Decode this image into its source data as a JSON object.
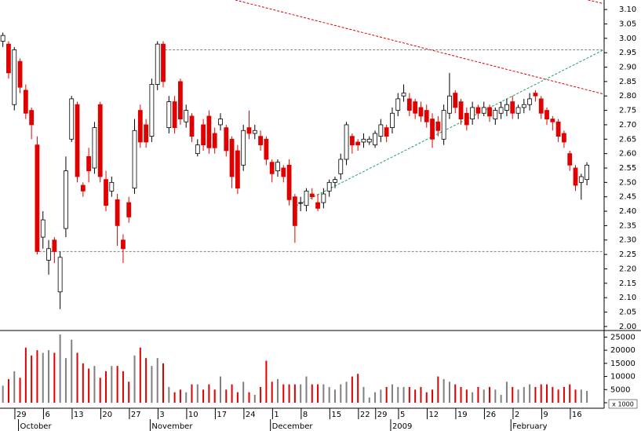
{
  "chart_data": [
    {
      "type": "candlestick",
      "open": [
        2.99,
        2.98,
        2.77,
        2.92,
        2.82,
        2.75,
        2.63,
        2.31,
        2.23,
        2.3,
        2.12,
        2.34,
        2.65,
        2.77,
        2.49,
        2.59,
        2.55,
        2.77,
        2.51,
        2.47,
        2.44,
        2.3,
        2.43,
        2.48,
        2.75,
        2.7,
        2.66,
        2.84,
        2.98,
        2.69,
        2.78,
        2.85,
        2.71,
        2.73,
        2.6,
        2.7,
        2.73,
        2.67,
        2.7,
        2.69,
        2.65,
        2.61,
        2.56,
        2.69,
        2.67,
        2.66,
        2.65,
        2.57,
        2.54,
        2.55,
        2.56,
        2.45,
        2.43,
        2.42,
        2.46,
        2.43,
        2.43,
        2.47,
        2.5,
        2.53,
        2.58,
        2.66,
        2.64,
        2.64,
        2.64,
        2.63,
        2.66,
        2.69,
        2.69,
        2.75,
        2.8,
        2.79,
        2.78,
        2.76,
        2.75,
        2.72,
        2.71,
        2.65,
        2.74,
        2.81,
        2.78,
        2.74,
        2.72,
        2.76,
        2.74,
        2.76,
        2.72,
        2.74,
        2.75,
        2.78,
        2.74,
        2.76,
        2.77,
        2.81,
        2.79,
        2.75,
        2.72,
        2.71,
        2.67,
        2.6,
        2.55,
        2.5,
        2.51
      ],
      "high": [
        3.02,
        2.99,
        2.97,
        2.93,
        2.84,
        2.76,
        2.66,
        2.4,
        2.3,
        2.31,
        2.26,
        2.59,
        2.8,
        2.78,
        2.5,
        2.62,
        2.71,
        2.78,
        2.54,
        2.52,
        2.46,
        2.32,
        2.45,
        2.72,
        2.77,
        2.72,
        2.86,
        2.99,
        2.99,
        2.8,
        2.8,
        2.86,
        2.77,
        2.74,
        2.65,
        2.72,
        2.75,
        2.69,
        2.74,
        2.7,
        2.66,
        2.63,
        2.7,
        2.75,
        2.7,
        2.68,
        2.66,
        2.58,
        2.58,
        2.56,
        2.58,
        2.46,
        2.45,
        2.48,
        2.48,
        2.46,
        2.48,
        2.51,
        2.52,
        2.6,
        2.71,
        2.67,
        2.65,
        2.67,
        2.66,
        2.68,
        2.72,
        2.7,
        2.76,
        2.81,
        2.84,
        2.81,
        2.79,
        2.78,
        2.77,
        2.74,
        2.73,
        2.77,
        2.88,
        2.82,
        2.79,
        2.76,
        2.78,
        2.77,
        2.78,
        2.77,
        2.76,
        2.78,
        2.79,
        2.8,
        2.77,
        2.79,
        2.81,
        2.82,
        2.8,
        2.76,
        2.73,
        2.72,
        2.68,
        2.61,
        2.56,
        2.53,
        2.57
      ],
      "low": [
        2.97,
        2.86,
        2.75,
        2.81,
        2.72,
        2.65,
        2.25,
        2.27,
        2.18,
        2.22,
        2.06,
        2.31,
        2.64,
        2.5,
        2.45,
        2.5,
        2.53,
        2.5,
        2.4,
        2.45,
        2.28,
        2.22,
        2.36,
        2.46,
        2.62,
        2.62,
        2.64,
        2.82,
        2.83,
        2.67,
        2.67,
        2.7,
        2.69,
        2.64,
        2.59,
        2.61,
        2.6,
        2.6,
        2.68,
        2.59,
        2.48,
        2.46,
        2.54,
        2.65,
        2.65,
        2.61,
        2.56,
        2.5,
        2.52,
        2.5,
        2.42,
        2.29,
        2.4,
        2.4,
        2.44,
        2.4,
        2.41,
        2.45,
        2.48,
        2.51,
        2.56,
        2.6,
        2.61,
        2.62,
        2.63,
        2.62,
        2.64,
        2.64,
        2.67,
        2.73,
        2.78,
        2.73,
        2.72,
        2.71,
        2.69,
        2.62,
        2.66,
        2.63,
        2.72,
        2.74,
        2.7,
        2.68,
        2.7,
        2.72,
        2.73,
        2.71,
        2.7,
        2.72,
        2.73,
        2.72,
        2.72,
        2.74,
        2.75,
        2.78,
        2.72,
        2.7,
        2.68,
        2.64,
        2.62,
        2.54,
        2.47,
        2.44,
        2.49
      ],
      "close": [
        3.01,
        2.88,
        2.96,
        2.83,
        2.74,
        2.7,
        2.26,
        2.37,
        2.27,
        2.26,
        2.24,
        2.54,
        2.79,
        2.52,
        2.47,
        2.54,
        2.69,
        2.52,
        2.42,
        2.5,
        2.35,
        2.27,
        2.38,
        2.68,
        2.64,
        2.64,
        2.84,
        2.98,
        2.85,
        2.78,
        2.69,
        2.72,
        2.75,
        2.66,
        2.63,
        2.63,
        2.62,
        2.62,
        2.72,
        2.61,
        2.52,
        2.48,
        2.68,
        2.67,
        2.68,
        2.63,
        2.58,
        2.53,
        2.57,
        2.52,
        2.44,
        2.35,
        2.43,
        2.47,
        2.45,
        2.41,
        2.46,
        2.5,
        2.51,
        2.58,
        2.7,
        2.63,
        2.63,
        2.65,
        2.65,
        2.67,
        2.7,
        2.66,
        2.74,
        2.79,
        2.81,
        2.75,
        2.74,
        2.73,
        2.71,
        2.65,
        2.68,
        2.75,
        2.8,
        2.76,
        2.72,
        2.7,
        2.76,
        2.74,
        2.76,
        2.73,
        2.75,
        2.76,
        2.77,
        2.74,
        2.76,
        2.77,
        2.79,
        2.8,
        2.74,
        2.72,
        2.71,
        2.66,
        2.64,
        2.56,
        2.49,
        2.52,
        2.56
      ],
      "up_color": "#ffffff",
      "down_color": "#e00000",
      "xlim": [
        -0.5,
        105
      ],
      "ylim": [
        1.986,
        3.133
      ],
      "yticks": [
        {
          "value": 2.0,
          "label": "2.00"
        },
        2.05,
        {
          "value": 2.1,
          "label": "2.10"
        },
        2.15,
        {
          "value": 2.2,
          "label": "2.20"
        },
        2.25,
        {
          "value": 2.3,
          "label": "2.30"
        },
        2.35,
        {
          "value": 2.4,
          "label": "2.40"
        },
        2.45,
        {
          "value": 2.5,
          "label": "2.50"
        },
        2.55,
        {
          "value": 2.6,
          "label": "2.60"
        },
        2.65,
        {
          "value": 2.7,
          "label": "2.70"
        },
        2.75,
        {
          "value": 2.8,
          "label": "2.80"
        },
        2.85,
        {
          "value": 2.9,
          "label": "2.90"
        },
        2.95,
        {
          "value": 3.0,
          "label": "3.00"
        },
        3.05,
        {
          "value": 3.1,
          "label": "3.10"
        }
      ],
      "xticks": [
        {
          "value": 1,
          "label": "29"
        },
        {
          "value": 6,
          "label": "6"
        },
        {
          "value": 11,
          "label": "13"
        },
        {
          "value": 16,
          "label": "20"
        },
        {
          "value": 21,
          "label": "27"
        },
        {
          "value": 26,
          "label": "3"
        },
        {
          "value": 31,
          "label": "10"
        },
        {
          "value": 36,
          "label": "17"
        },
        {
          "value": 41,
          "label": "24"
        },
        {
          "value": 46,
          "label": "1"
        },
        {
          "value": 51,
          "label": "8"
        },
        {
          "value": 56,
          "label": "15"
        },
        {
          "value": 61,
          "label": "22"
        },
        {
          "value": 64,
          "label": "29"
        },
        {
          "value": 68,
          "label": "5"
        },
        {
          "value": 73,
          "label": "12"
        },
        {
          "value": 78,
          "label": "19"
        },
        {
          "value": 83,
          "label": "26"
        },
        {
          "value": 88,
          "label": "2"
        },
        {
          "value": 93,
          "label": "9"
        },
        {
          "value": 98,
          "label": "16"
        }
      ],
      "month_ticks": [
        {
          "value": 3,
          "label": "October"
        },
        {
          "value": 26,
          "label": "November"
        },
        {
          "value": 47,
          "label": "December"
        },
        {
          "value": 68,
          "label": "2009"
        },
        {
          "value": 89,
          "label": "February"
        }
      ],
      "trendlines": [
        {
          "color": "#e00000",
          "x": [
            40.6,
            105
          ],
          "y": [
            3.133,
            2.806
          ]
        },
        {
          "color": "#e00000",
          "x": [
            102.2,
            105
          ],
          "y": [
            3.133,
            3.12
          ]
        },
        {
          "color": "#20a060",
          "x": [
            51.2,
            105
          ],
          "y": [
            2.419,
            2.961
          ]
        },
        {
          "color": "#808080",
          "x": [
            6.3,
            105
          ],
          "y": [
            2.26,
            2.26
          ]
        },
        {
          "color": "#808080",
          "x": [
            28.3,
            105
          ],
          "y": [
            2.96,
            2.96
          ]
        }
      ]
    },
    {
      "type": "bar",
      "values": [
        6500,
        9000,
        12000,
        9500,
        21000,
        18000,
        20000,
        19000,
        20000,
        19000,
        26000,
        17000,
        24000,
        19000,
        15000,
        13000,
        14000,
        9500,
        12000,
        14000,
        14000,
        12000,
        8000,
        18000,
        21000,
        17000,
        14000,
        17000,
        15000,
        6000,
        4000,
        5000,
        4000,
        7000,
        7000,
        5000,
        7000,
        5000,
        10000,
        5000,
        7000,
        4000,
        8000,
        4000,
        3000,
        6000,
        16000,
        8000,
        9000,
        7000,
        7000,
        7000,
        7000,
        10000,
        7000,
        7000,
        7000,
        6000,
        5000,
        7000,
        8000,
        10000,
        11000,
        6000,
        2000,
        4000,
        5000,
        6000,
        7000,
        6000,
        6000,
        6000,
        5000,
        6000,
        4000,
        5000,
        10000,
        9000,
        8000,
        7000,
        6000,
        5000,
        4000,
        6000,
        5000,
        6000,
        5000,
        3000,
        8000,
        6000,
        5000,
        6000,
        7000,
        6000,
        7000,
        7000,
        6000,
        5000,
        6000,
        7000,
        5000,
        5000,
        4500
      ],
      "up_color": "#808080",
      "down_color": "#e00000",
      "ylim": [
        0,
        27500
      ],
      "yticks": [
        0,
        5000,
        10000,
        15000,
        20000,
        25000
      ],
      "unit": "x 1000"
    }
  ]
}
